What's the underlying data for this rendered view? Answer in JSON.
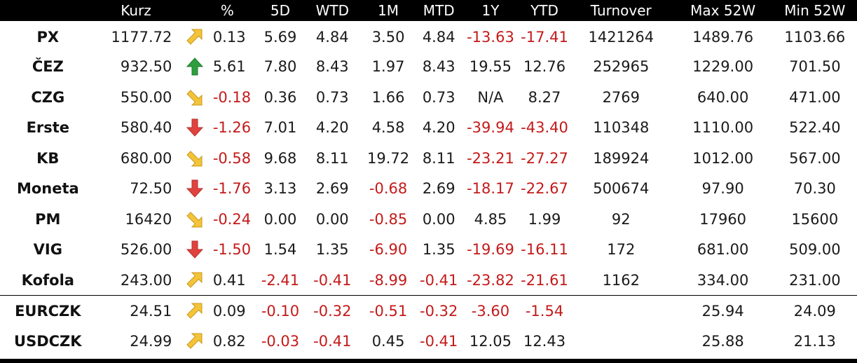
{
  "colors": {
    "header_bg": "#000000",
    "header_text": "#ffffff",
    "negative": "#c41a1a",
    "arrow_up_strong": "#2e9e3e",
    "arrow_up_light": "#f3c33a",
    "arrow_down_light": "#f3c33a",
    "arrow_down_strong": "#e0433f"
  },
  "table": {
    "headers": {
      "kurz": "Kurz",
      "pct": "%",
      "d5": "5D",
      "wtd": "WTD",
      "m1": "1M",
      "mtd": "MTD",
      "y1": "1Y",
      "ytd": "YTD",
      "turnover": "Turnover",
      "max52": "Max 52W",
      "min52": "Min 52W"
    },
    "rows": [
      {
        "name": "PX",
        "kurz": "1177.72",
        "arrow": "arrow-up-right-icon",
        "pct": "0.13",
        "d5": "5.69",
        "wtd": "4.84",
        "m1": "3.50",
        "mtd": "4.84",
        "y1": "-13.63",
        "ytd": "-17.41",
        "turnover": "1421264",
        "max52": "1489.76",
        "min52": "1103.66"
      },
      {
        "name": "ČEZ",
        "kurz": "932.50",
        "arrow": "arrow-up-icon",
        "pct": "5.61",
        "d5": "7.80",
        "wtd": "8.43",
        "m1": "1.97",
        "mtd": "8.43",
        "y1": "19.55",
        "ytd": "12.76",
        "turnover": "252965",
        "max52": "1229.00",
        "min52": "701.50"
      },
      {
        "name": "CZG",
        "kurz": "550.00",
        "arrow": "arrow-down-right-icon",
        "pct": "-0.18",
        "d5": "0.36",
        "wtd": "0.73",
        "m1": "1.66",
        "mtd": "0.73",
        "y1": "N/A",
        "ytd": "8.27",
        "turnover": "2769",
        "max52": "640.00",
        "min52": "471.00"
      },
      {
        "name": "Erste",
        "kurz": "580.40",
        "arrow": "arrow-down-icon",
        "pct": "-1.26",
        "d5": "7.01",
        "wtd": "4.20",
        "m1": "4.58",
        "mtd": "4.20",
        "y1": "-39.94",
        "ytd": "-43.40",
        "turnover": "110348",
        "max52": "1110.00",
        "min52": "522.40"
      },
      {
        "name": "KB",
        "kurz": "680.00",
        "arrow": "arrow-down-right-icon",
        "pct": "-0.58",
        "d5": "9.68",
        "wtd": "8.11",
        "m1": "19.72",
        "mtd": "8.11",
        "y1": "-23.21",
        "ytd": "-27.27",
        "turnover": "189924",
        "max52": "1012.00",
        "min52": "567.00"
      },
      {
        "name": "Moneta",
        "kurz": "72.50",
        "arrow": "arrow-down-icon",
        "pct": "-1.76",
        "d5": "3.13",
        "wtd": "2.69",
        "m1": "-0.68",
        "mtd": "2.69",
        "y1": "-18.17",
        "ytd": "-22.67",
        "turnover": "500674",
        "max52": "97.90",
        "min52": "70.30"
      },
      {
        "name": "PM",
        "kurz": "16420",
        "arrow": "arrow-down-right-icon",
        "pct": "-0.24",
        "d5": "0.00",
        "wtd": "0.00",
        "m1": "-0.85",
        "mtd": "0.00",
        "y1": "4.85",
        "ytd": "1.99",
        "turnover": "92",
        "max52": "17960",
        "min52": "15600"
      },
      {
        "name": "VIG",
        "kurz": "526.00",
        "arrow": "arrow-down-icon",
        "pct": "-1.50",
        "d5": "1.54",
        "wtd": "1.35",
        "m1": "-6.90",
        "mtd": "1.35",
        "y1": "-19.69",
        "ytd": "-16.11",
        "turnover": "172",
        "max52": "681.00",
        "min52": "509.00"
      },
      {
        "name": "Kofola",
        "kurz": "243.00",
        "arrow": "arrow-up-right-icon",
        "pct": "0.41",
        "d5": "-2.41",
        "wtd": "-0.41",
        "m1": "-8.99",
        "mtd": "-0.41",
        "y1": "-23.82",
        "ytd": "-21.61",
        "turnover": "1162",
        "max52": "334.00",
        "min52": "231.00"
      },
      {
        "name": "EURCZK",
        "kurz": "24.51",
        "arrow": "arrow-up-right-icon",
        "pct": "0.09",
        "d5": "-0.10",
        "wtd": "-0.32",
        "m1": "-0.51",
        "mtd": "-0.32",
        "y1": "-3.60",
        "ytd": "-1.54",
        "turnover": "",
        "max52": "25.94",
        "min52": "24.09"
      },
      {
        "name": "USDCZK",
        "kurz": "24.99",
        "arrow": "arrow-up-right-icon",
        "pct": "0.82",
        "d5": "-0.03",
        "wtd": "-0.41",
        "m1": "0.45",
        "mtd": "-0.41",
        "y1": "12.05",
        "ytd": "12.43",
        "turnover": "",
        "max52": "25.88",
        "min52": "21.13"
      }
    ]
  }
}
